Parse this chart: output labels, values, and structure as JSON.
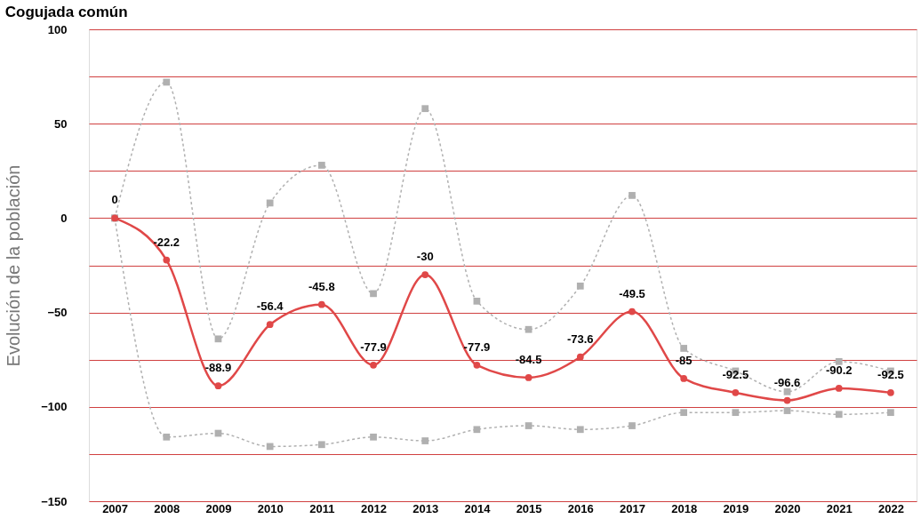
{
  "chart_data": {
    "type": "line",
    "title": "Cogujada común",
    "ylabel": "Evolución de la población",
    "categories": [
      "2007",
      "2008",
      "2009",
      "2010",
      "2011",
      "2012",
      "2013",
      "2014",
      "2015",
      "2016",
      "2017",
      "2018",
      "2019",
      "2020",
      "2021",
      "2022"
    ],
    "series": [
      {
        "color": "#b0b0b0",
        "line_style": "dotted",
        "marker": "square",
        "values": [
          0,
          72,
          -64,
          8,
          28,
          -40,
          58,
          -44,
          -59,
          -36,
          12,
          -69,
          -81,
          -92,
          -76,
          -81
        ]
      },
      {
        "color": "#b0b0b0",
        "line_style": "dotted",
        "marker": "square",
        "values": [
          0,
          -116,
          -114,
          -121,
          -120,
          -116,
          -118,
          -112,
          -110,
          -112,
          -110,
          -103,
          -103,
          -102,
          -104,
          -103
        ]
      },
      {
        "color": "#e04848",
        "line_style": "solid",
        "marker": "circle",
        "values": [
          0,
          -22.2,
          -88.9,
          -56.4,
          -45.8,
          -77.9,
          -30,
          -77.9,
          -84.5,
          -73.6,
          -49.5,
          -85,
          -92.5,
          -96.6,
          -90.2,
          -92.5
        ],
        "value_labels": [
          "0",
          "-22.2",
          "-88.9",
          "-56.4",
          "-45.8",
          "-77.9",
          "-30",
          "-77.9",
          "-84.5",
          "-73.6",
          "-49.5",
          "-85",
          "-92.5",
          "-96.6",
          "-90.2",
          "-92.5"
        ]
      }
    ],
    "ylim": [
      -150,
      100
    ],
    "yticks": [
      -150,
      {
        "value": -125,
        "label": null
      },
      -100,
      {
        "value": -75,
        "label": null
      },
      -50,
      {
        "value": -25,
        "label": null
      },
      0,
      {
        "value": 25,
        "label": null
      },
      50,
      {
        "value": 75,
        "label": null
      },
      100
    ],
    "grid": "y"
  }
}
